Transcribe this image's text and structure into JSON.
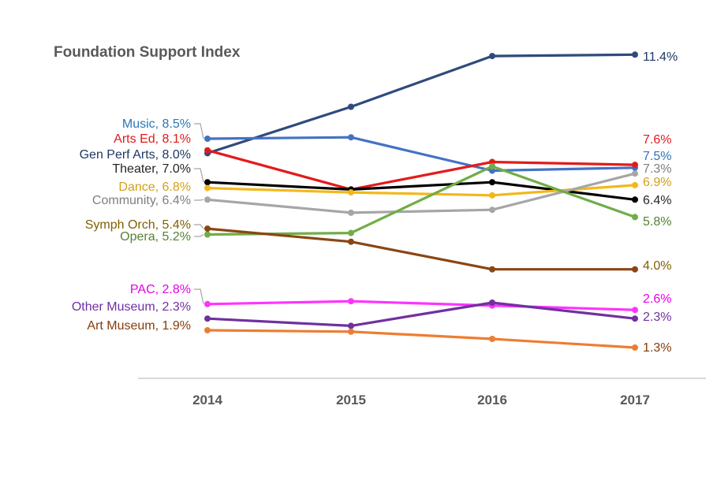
{
  "chart_data": {
    "type": "line",
    "title": "Foundation Support Index",
    "categories": [
      "2014",
      "2015",
      "2016",
      "2017"
    ],
    "y_unit": "%",
    "grid": false,
    "legend": "none; series labeled at line ends",
    "series": [
      {
        "name": "Gen Perf Arts",
        "color": "#2f4b7c",
        "values": [
          8.0,
          9.6,
          11.35,
          11.4
        ],
        "start_label": "Gen Perf Arts, 8.0%",
        "end_label": "11.4%"
      },
      {
        "name": "Music",
        "color": "#4472c4",
        "values": [
          8.5,
          8.55,
          7.4,
          7.5
        ],
        "start_label": "Music, 8.5%",
        "end_label": "7.5%"
      },
      {
        "name": "Arts Ed",
        "color": "#e31a1c",
        "values": [
          8.1,
          6.75,
          7.7,
          7.6
        ],
        "start_label": "Arts Ed, 8.1%",
        "end_label": "7.6%"
      },
      {
        "name": "Theater",
        "color": "#000000",
        "values": [
          7.0,
          6.75,
          7.0,
          6.4
        ],
        "start_label": "Theater, 7.0%",
        "end_label": "6.4%"
      },
      {
        "name": "Dance",
        "color": "#f2b81b",
        "values": [
          6.8,
          6.65,
          6.55,
          6.9
        ],
        "start_label": "Dance, 6.8%",
        "end_label": "6.9%"
      },
      {
        "name": "Community",
        "color": "#a6a6a6",
        "values": [
          6.4,
          5.95,
          6.05,
          7.3
        ],
        "start_label": "Community, 6.4%",
        "end_label": "7.3%"
      },
      {
        "name": "Opera",
        "color": "#70ad47",
        "values": [
          5.2,
          5.25,
          7.55,
          5.8
        ],
        "start_label": "Opera, 5.2%",
        "end_label": "5.8%"
      },
      {
        "name": "Symph Orch",
        "color": "#8b4513",
        "values": [
          5.4,
          4.95,
          4.0,
          4.0
        ],
        "start_label": "Symph Orch, 5.4%",
        "end_label": "4.0%"
      },
      {
        "name": "PAC",
        "color": "#ff33ff",
        "values": [
          2.8,
          2.9,
          2.75,
          2.6
        ],
        "start_label": "PAC, 2.8%",
        "end_label": "2.6%"
      },
      {
        "name": "Other Museum",
        "color": "#7030a0",
        "values": [
          2.3,
          2.05,
          2.85,
          2.3
        ],
        "start_label": "Other Museum, 2.3%",
        "end_label": "2.3%"
      },
      {
        "name": "Art Museum",
        "color": "#ed7d31",
        "values": [
          1.9,
          1.85,
          1.6,
          1.3
        ],
        "start_label": "Art Museum, 1.9%",
        "end_label": "1.3%"
      }
    ],
    "label_colors": {
      "Gen Perf Arts": "#1f3864",
      "Music": "#2e75b6",
      "Arts Ed": "#e31a1c",
      "Theater": "#262626",
      "Dance": "#d4a017",
      "Community": "#7f7f7f",
      "Opera": "#548235",
      "Symph Orch": "#7f6000",
      "PAC": "#e600e6",
      "Other Museum": "#7030a0",
      "Art Museum": "#843c0c"
    },
    "end_label_colors": {
      "Gen Perf Arts": "#1f3864",
      "Music": "#2e75b6",
      "Arts Ed": "#e31a1c",
      "Theater": "#262626",
      "Dance": "#d4a017",
      "Community": "#7f7f7f",
      "Opera": "#548235",
      "Symph Orch": "#7f6000",
      "PAC": "#e600e6",
      "Other Museum": "#7030a0",
      "Art Museum": "#843c0c"
    },
    "axis_color": "#d9d9d9"
  }
}
